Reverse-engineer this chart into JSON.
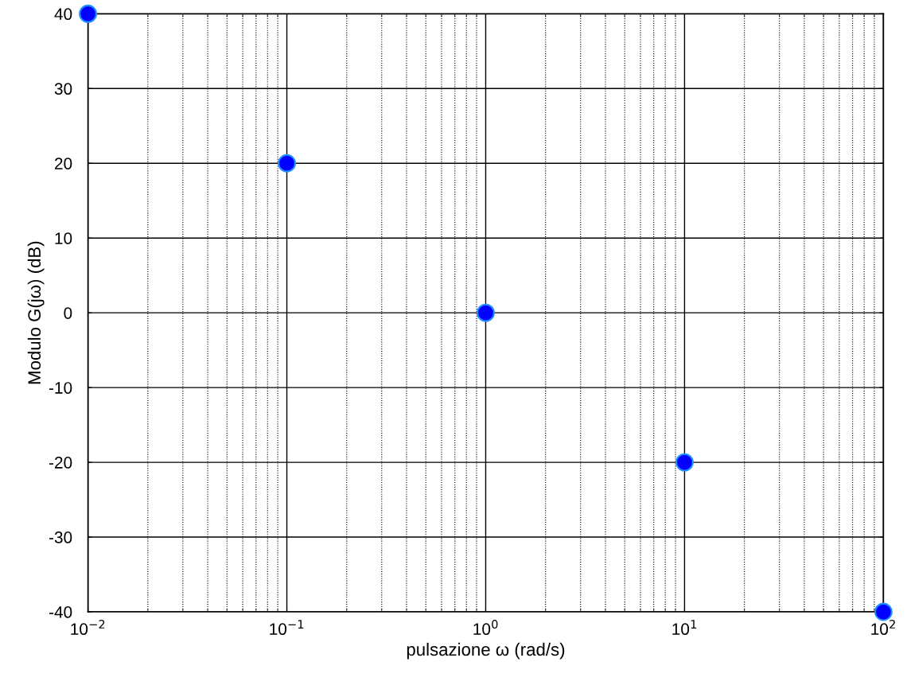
{
  "chart_data": {
    "type": "scatter",
    "xlabel": "pulsazione ω (rad/s)",
    "ylabel": "Modulo G(jω) (dB)",
    "x": [
      0.01,
      0.1,
      1,
      10,
      100
    ],
    "series": [
      {
        "color": "#0000ff",
        "values": [
          40,
          20,
          0,
          -20,
          -40
        ]
      }
    ],
    "log": "x",
    "xlim": [
      0.01,
      100
    ],
    "ylim": [
      -40,
      40
    ],
    "xticks": [
      {
        "value": 0.01,
        "label": "10$^{−2}$"
      },
      {
        "value": 0.1,
        "label": "10$^{−1}$"
      },
      {
        "value": 1,
        "label": "10$^{0}$"
      },
      {
        "value": 10,
        "label": "10$^{1}$"
      },
      {
        "value": 100,
        "label": "10$^{2}$"
      }
    ],
    "yticks": [
      -40,
      -30,
      -20,
      -10,
      0,
      10,
      20,
      30,
      40
    ],
    "grid": true,
    "marker": "circle"
  }
}
